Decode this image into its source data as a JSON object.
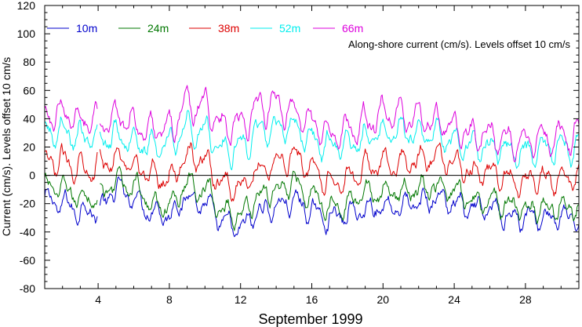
{
  "chart_data": {
    "type": "line",
    "xlabel": "September 1999",
    "ylabel": "Current (cm/s). Levels offset 10 cm/s",
    "annotation": "Along-shore current (cm/s). Levels offset 10 cm/s",
    "xlim": [
      1,
      31
    ],
    "ylim": [
      -80,
      120
    ],
    "x_ticks": [
      4,
      8,
      12,
      16,
      20,
      24,
      28
    ],
    "x_tick_labels": [
      "4",
      "8",
      "12",
      "16",
      "20",
      "24",
      "28"
    ],
    "y_ticks": [
      -80,
      -60,
      -40,
      -20,
      0,
      20,
      40,
      60,
      80,
      100,
      120
    ],
    "y_tick_labels": [
      "-80",
      "-60",
      "-40",
      "-20",
      "0",
      "20",
      "40",
      "60",
      "80",
      "100",
      "120"
    ],
    "zero_line": 0,
    "grid": false,
    "legend_position": "top-left",
    "sample_step_days": 0.05,
    "series": [
      {
        "name": "10m",
        "color": "#0000cc"
      },
      {
        "name": "24m",
        "color": "#007700"
      },
      {
        "name": "38m",
        "color": "#dd0000"
      },
      {
        "name": "52m",
        "color": "#00eeee"
      },
      {
        "name": "66m",
        "color": "#dd00dd"
      }
    ],
    "daily_means": {
      "days": [
        1,
        2,
        3,
        4,
        5,
        6,
        7,
        8,
        9,
        10,
        11,
        12,
        13,
        14,
        15,
        16,
        17,
        18,
        19,
        20,
        21,
        22,
        23,
        24,
        25,
        26,
        27,
        28,
        29,
        30,
        31
      ],
      "10m": [
        -18,
        -20,
        -25,
        -25,
        -10,
        -16,
        -25,
        -28,
        -15,
        -20,
        -34,
        -38,
        -26,
        -22,
        -18,
        -26,
        -30,
        -28,
        -24,
        -22,
        -22,
        -20,
        -16,
        -20,
        -25,
        -24,
        -28,
        -30,
        -30,
        -30,
        -32
      ],
      "24m": [
        -8,
        -10,
        -15,
        -16,
        -4,
        -8,
        -20,
        -22,
        -6,
        -10,
        -25,
        -28,
        -15,
        -10,
        -5,
        -14,
        -22,
        -20,
        -14,
        -12,
        -12,
        -10,
        -8,
        -12,
        -18,
        -18,
        -22,
        -24,
        -22,
        -22,
        -24
      ],
      "38m": [
        8,
        10,
        6,
        6,
        12,
        8,
        0,
        -2,
        14,
        10,
        -6,
        -8,
        4,
        10,
        14,
        4,
        -4,
        -2,
        6,
        8,
        8,
        10,
        12,
        8,
        2,
        2,
        -2,
        -4,
        -2,
        -2,
        -4
      ],
      "52m": [
        30,
        32,
        26,
        25,
        28,
        26,
        20,
        22,
        34,
        30,
        18,
        20,
        30,
        34,
        34,
        26,
        20,
        22,
        26,
        30,
        30,
        30,
        28,
        24,
        20,
        20,
        18,
        16,
        18,
        20,
        18
      ],
      "66m": [
        42,
        44,
        38,
        36,
        40,
        38,
        32,
        34,
        50,
        48,
        34,
        36,
        48,
        50,
        44,
        36,
        30,
        32,
        38,
        42,
        42,
        40,
        38,
        34,
        28,
        28,
        26,
        24,
        26,
        28,
        28
      ]
    },
    "diurnal_amplitude_cm_s": {
      "10m": 6,
      "24m": 6,
      "38m": 7,
      "52m": 8,
      "66m": 9
    },
    "missing_intervals": [
      {
        "series": "10m",
        "x": [
          3.95,
          4.05
        ]
      },
      {
        "series": "24m",
        "x": [
          3.95,
          4.05
        ]
      },
      {
        "series": "38m",
        "x": [
          3.95,
          4.05
        ]
      },
      {
        "series": "52m",
        "x": [
          3.95,
          4.05
        ]
      },
      {
        "series": "66m",
        "x": [
          3.95,
          4.05
        ]
      }
    ]
  }
}
